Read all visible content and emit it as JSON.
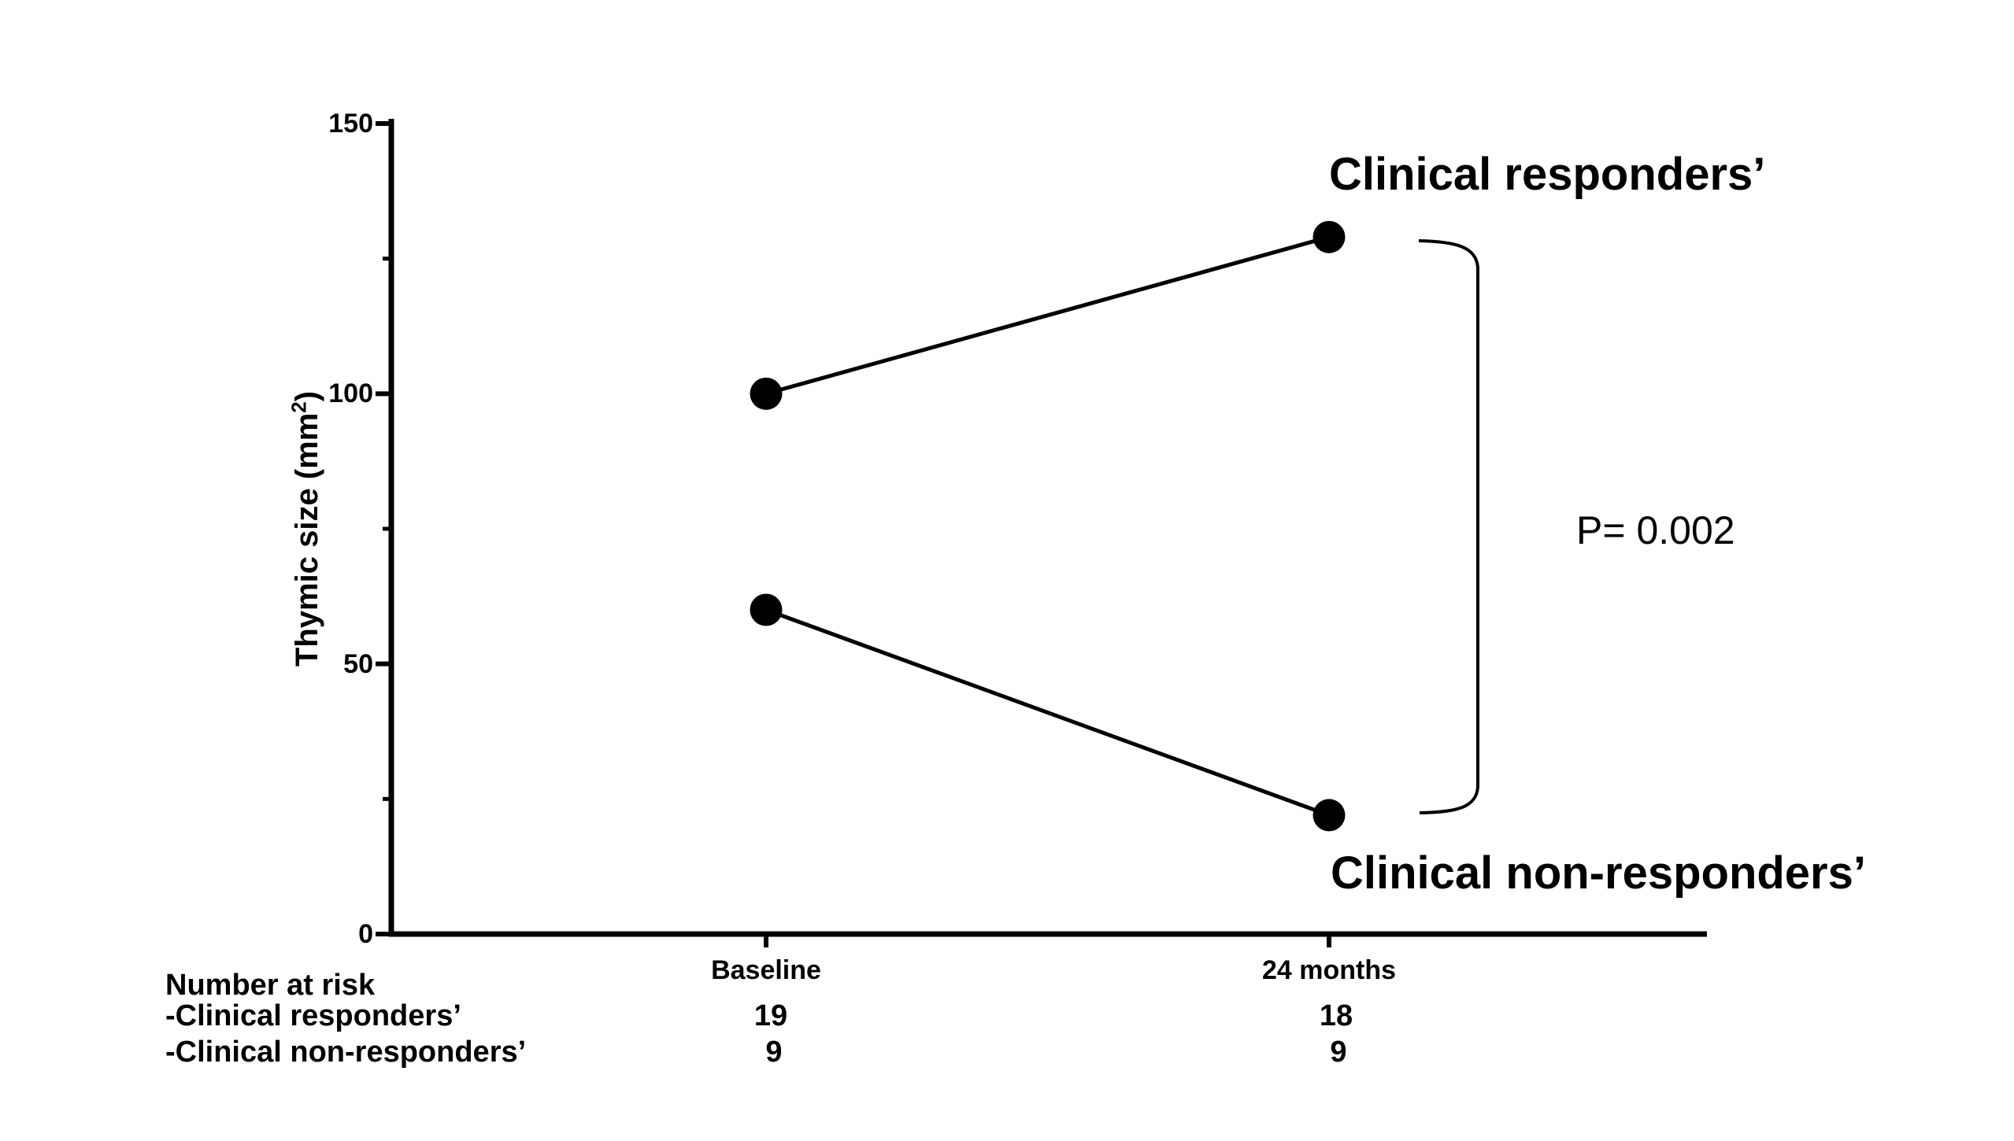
{
  "chart_data": {
    "type": "line",
    "title": "",
    "categories": [
      "Baseline",
      "24 months"
    ],
    "series": [
      {
        "name": "Clinical responders’",
        "values": [
          100,
          129
        ]
      },
      {
        "name": "Clinical non-responders’",
        "values": [
          60,
          22
        ]
      }
    ],
    "xlabel": "",
    "ylabel": "Thymic size (mm²)",
    "ylabel_parts": {
      "pre": "Thymic size (mm",
      "sup": "2",
      "post": ")"
    },
    "ylim": [
      0,
      150
    ],
    "yticks": [
      0,
      50,
      100,
      150
    ],
    "yticks_minor": [
      25,
      75,
      125
    ],
    "grid": false,
    "legend_position": "inline-labels-right",
    "marker": "filled-circle",
    "color": "#000000",
    "annotation": {
      "text": "P= 0.002"
    }
  },
  "number_at_risk": {
    "title": "Number at risk",
    "columns": [
      "Baseline",
      "24 months"
    ],
    "rows": [
      {
        "label": "-Clinical responders’",
        "values": [
          "19",
          "18"
        ]
      },
      {
        "label": "-Clinical non-responders’",
        "values": [
          "9",
          "9"
        ]
      }
    ]
  }
}
